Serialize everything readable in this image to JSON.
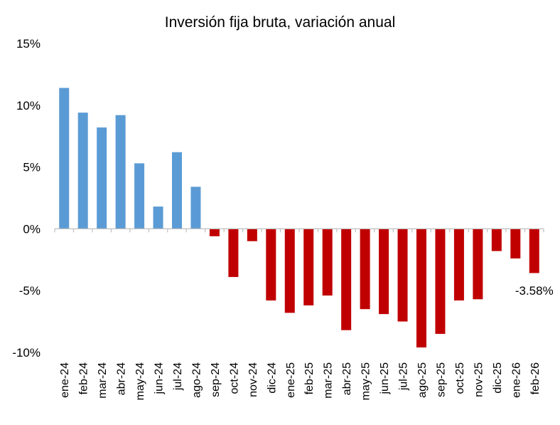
{
  "chart_data": {
    "type": "bar",
    "title": "Inversión fija bruta, variación anual",
    "xlabel": "",
    "ylabel": "",
    "ylim": [
      -10,
      15
    ],
    "yticks": [
      15,
      10,
      5,
      0,
      -5,
      -10
    ],
    "ytick_labels": [
      "15%",
      "10%",
      "5%",
      "0%",
      "-5%",
      "-10%"
    ],
    "grid": false,
    "legend": "none",
    "colors": {
      "positive": "#5B9BD5",
      "negative": "#C00000",
      "axis": "#BFBFBF"
    },
    "categories": [
      "ene-24",
      "feb-24",
      "mar-24",
      "abr-24",
      "may-24",
      "jun-24",
      "jul-24",
      "ago-24",
      "sep-24",
      "oct-24",
      "nov-24",
      "dic-24",
      "ene-25",
      "feb-25",
      "mar-25",
      "abr-25",
      "may-25",
      "jun-25",
      "jul-25",
      "ago-25",
      "sep-25",
      "oct-25",
      "nov-25",
      "dic-25",
      "ene-26",
      "feb-26"
    ],
    "values": [
      11.4,
      9.4,
      8.2,
      9.2,
      5.3,
      1.8,
      6.2,
      3.4,
      -0.6,
      -3.9,
      -1.0,
      -5.8,
      -6.8,
      -6.2,
      -5.4,
      -8.2,
      -6.5,
      -6.9,
      -7.5,
      -9.6,
      -8.5,
      -5.8,
      -5.7,
      -1.8,
      -2.4,
      -3.58
    ],
    "data_labels": [
      {
        "index": 25,
        "text": "-3.58%"
      }
    ]
  }
}
